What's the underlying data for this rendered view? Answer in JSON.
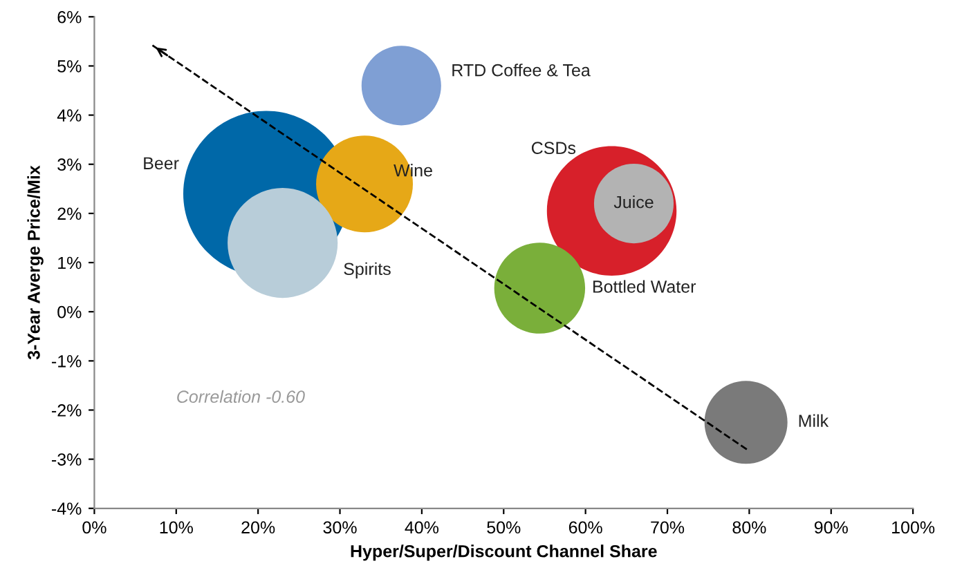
{
  "chart_data": {
    "type": "bubble",
    "xlabel": "Hyper/Super/Discount Channel Share",
    "ylabel": "3-Year Averge Price/Mix",
    "xlim": [
      0,
      100
    ],
    "ylim": [
      -4,
      6
    ],
    "xticks": [
      {
        "value": 0,
        "label": "0%"
      },
      {
        "value": 10,
        "label": "10%"
      },
      {
        "value": 20,
        "label": "20%"
      },
      {
        "value": 30,
        "label": "30%"
      },
      {
        "value": 40,
        "label": "40%"
      },
      {
        "value": 50,
        "label": "50%"
      },
      {
        "value": 60,
        "label": "60%"
      },
      {
        "value": 70,
        "label": "70%"
      },
      {
        "value": 80,
        "label": "80%"
      },
      {
        "value": 90,
        "label": "90%"
      },
      {
        "value": 100,
        "label": "100%"
      }
    ],
    "yticks": [
      {
        "value": -4,
        "label": "-4%"
      },
      {
        "value": -3,
        "label": "-3%"
      },
      {
        "value": -2,
        "label": "-2%"
      },
      {
        "value": -1,
        "label": "-1%"
      },
      {
        "value": 0,
        "label": "0%"
      },
      {
        "value": 1,
        "label": "1%"
      },
      {
        "value": 2,
        "label": "2%"
      },
      {
        "value": 3,
        "label": "3%"
      },
      {
        "value": 4,
        "label": "4%"
      },
      {
        "value": 5,
        "label": "5%"
      },
      {
        "value": 6,
        "label": "6%"
      }
    ],
    "grid": false,
    "legend": false,
    "marker": "circle",
    "annotations": [
      "Correlation -0.60"
    ],
    "series": [
      {
        "name": "Beer",
        "color": "#0068a8",
        "x": [
          21
        ],
        "values": [
          2.4
        ],
        "sizes": [
          1
        ]
      },
      {
        "name": "Wine",
        "color": "#e6a817",
        "x": [
          33
        ],
        "values": [
          2.6
        ],
        "sizes": [
          0.34
        ]
      },
      {
        "name": "Spirits",
        "color": "#b8cdd9",
        "x": [
          23
        ],
        "values": [
          1.4
        ],
        "sizes": [
          0.44
        ]
      },
      {
        "name": "RTD Coffee & Tea",
        "color": "#7f9fd4",
        "x": [
          37.5
        ],
        "values": [
          4.6
        ],
        "sizes": [
          0.23
        ]
      },
      {
        "name": "CSDs",
        "color": "#d7202a",
        "x": [
          63.2
        ],
        "values": [
          2.05
        ],
        "sizes": [
          0.61
        ]
      },
      {
        "name": "Juice",
        "color": "#b3b3b3",
        "x": [
          65.9
        ],
        "values": [
          2.2
        ],
        "sizes": [
          0.23
        ]
      },
      {
        "name": "Bottled Water",
        "color": "#7aaf3a",
        "x": [
          54.4
        ],
        "values": [
          0.48
        ],
        "sizes": [
          0.3
        ]
      },
      {
        "name": "Milk",
        "color": "#7a7a7a",
        "x": [
          79.6
        ],
        "values": [
          -2.25
        ],
        "sizes": [
          0.25
        ]
      },
      {
        "type": "line",
        "color": "#000000",
        "line_style": "dashed",
        "marker": "none",
        "x": [
          79.7,
          7.1
        ],
        "values": [
          -2.8,
          5.42
        ]
      }
    ]
  }
}
